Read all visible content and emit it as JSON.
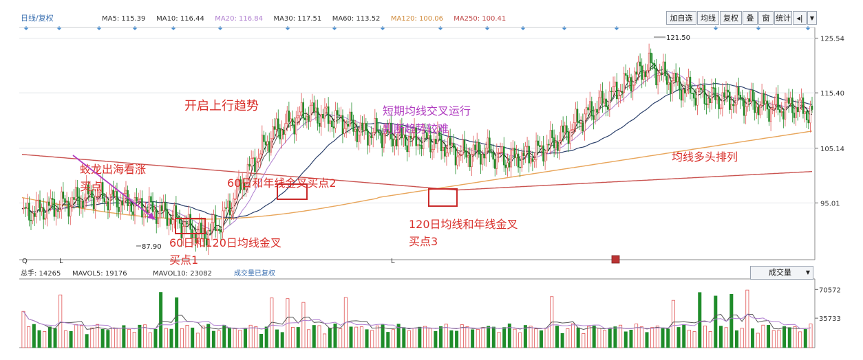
{
  "header": {
    "period_label": "日线/复权",
    "ma": [
      {
        "label": "MA5: 115.39",
        "color": "#333333"
      },
      {
        "label": "MA10: 116.44",
        "color": "#333333"
      },
      {
        "label": "MA20: 116.84",
        "color": "#b07fd0"
      },
      {
        "label": "MA30: 117.51",
        "color": "#333333"
      },
      {
        "label": "MA60: 113.52",
        "color": "#333333"
      },
      {
        "label": "MA120: 100.06",
        "color": "#d08a3a"
      },
      {
        "label": "MA250: 100.41",
        "color": "#c04a4a"
      }
    ]
  },
  "toolbar": {
    "buttons": [
      "加自选",
      "均线",
      "复权",
      "叠",
      "窗",
      "统计"
    ]
  },
  "annotations": {
    "uptrend": "开启上行趋势",
    "dragon": [
      "蛟龙出海看涨",
      "买点"
    ],
    "cross2": "60日和年线金叉买点2",
    "cross1": [
      "60日和120日均线金叉",
      "买点1"
    ],
    "short_ma": [
      "短期均线交叉运行",
      "判断趋势较难"
    ],
    "bull": "均线多头排列",
    "cross3": [
      "120日均线和年线金叉",
      "买点3"
    ],
    "high": "121.50",
    "low": "87.90"
  },
  "price_axis": {
    "ticks": [
      {
        "label": "125.54",
        "value": 125.54
      },
      {
        "label": "115.40",
        "value": 115.4
      },
      {
        "label": "105.14",
        "value": 105.14
      },
      {
        "label": "95.01",
        "value": 95.01
      }
    ]
  },
  "volume_header": {
    "items": [
      "总手: 14265",
      "MAVOL5: 19176",
      "MAVOL10: 23082",
      "成交量已复权"
    ],
    "button": "成交量"
  },
  "volume_axis": {
    "ticks": [
      {
        "label": "70572",
        "value": 70572
      },
      {
        "label": "35733",
        "value": 35733
      }
    ]
  },
  "x_axis_markers": [
    "Q",
    "L",
    "L"
  ],
  "colors": {
    "up": "#e05252",
    "down": "#1f8c2a",
    "annotation_red": "#d9302b",
    "annotation_purple": "#b03cc0",
    "box": "#c92a2a",
    "ma120": "#e8a55a",
    "ma250": "#c9524f"
  },
  "chart_data": {
    "type": "candlestick",
    "title": "",
    "xlabel": "",
    "ylabel": "",
    "ylim": [
      85,
      127
    ],
    "volume_ylim": [
      0,
      80000
    ],
    "high": 121.5,
    "low": 87.9,
    "ma_lines": [
      "MA5",
      "MA10",
      "MA20",
      "MA30",
      "MA60",
      "MA120",
      "MA250"
    ]
  }
}
